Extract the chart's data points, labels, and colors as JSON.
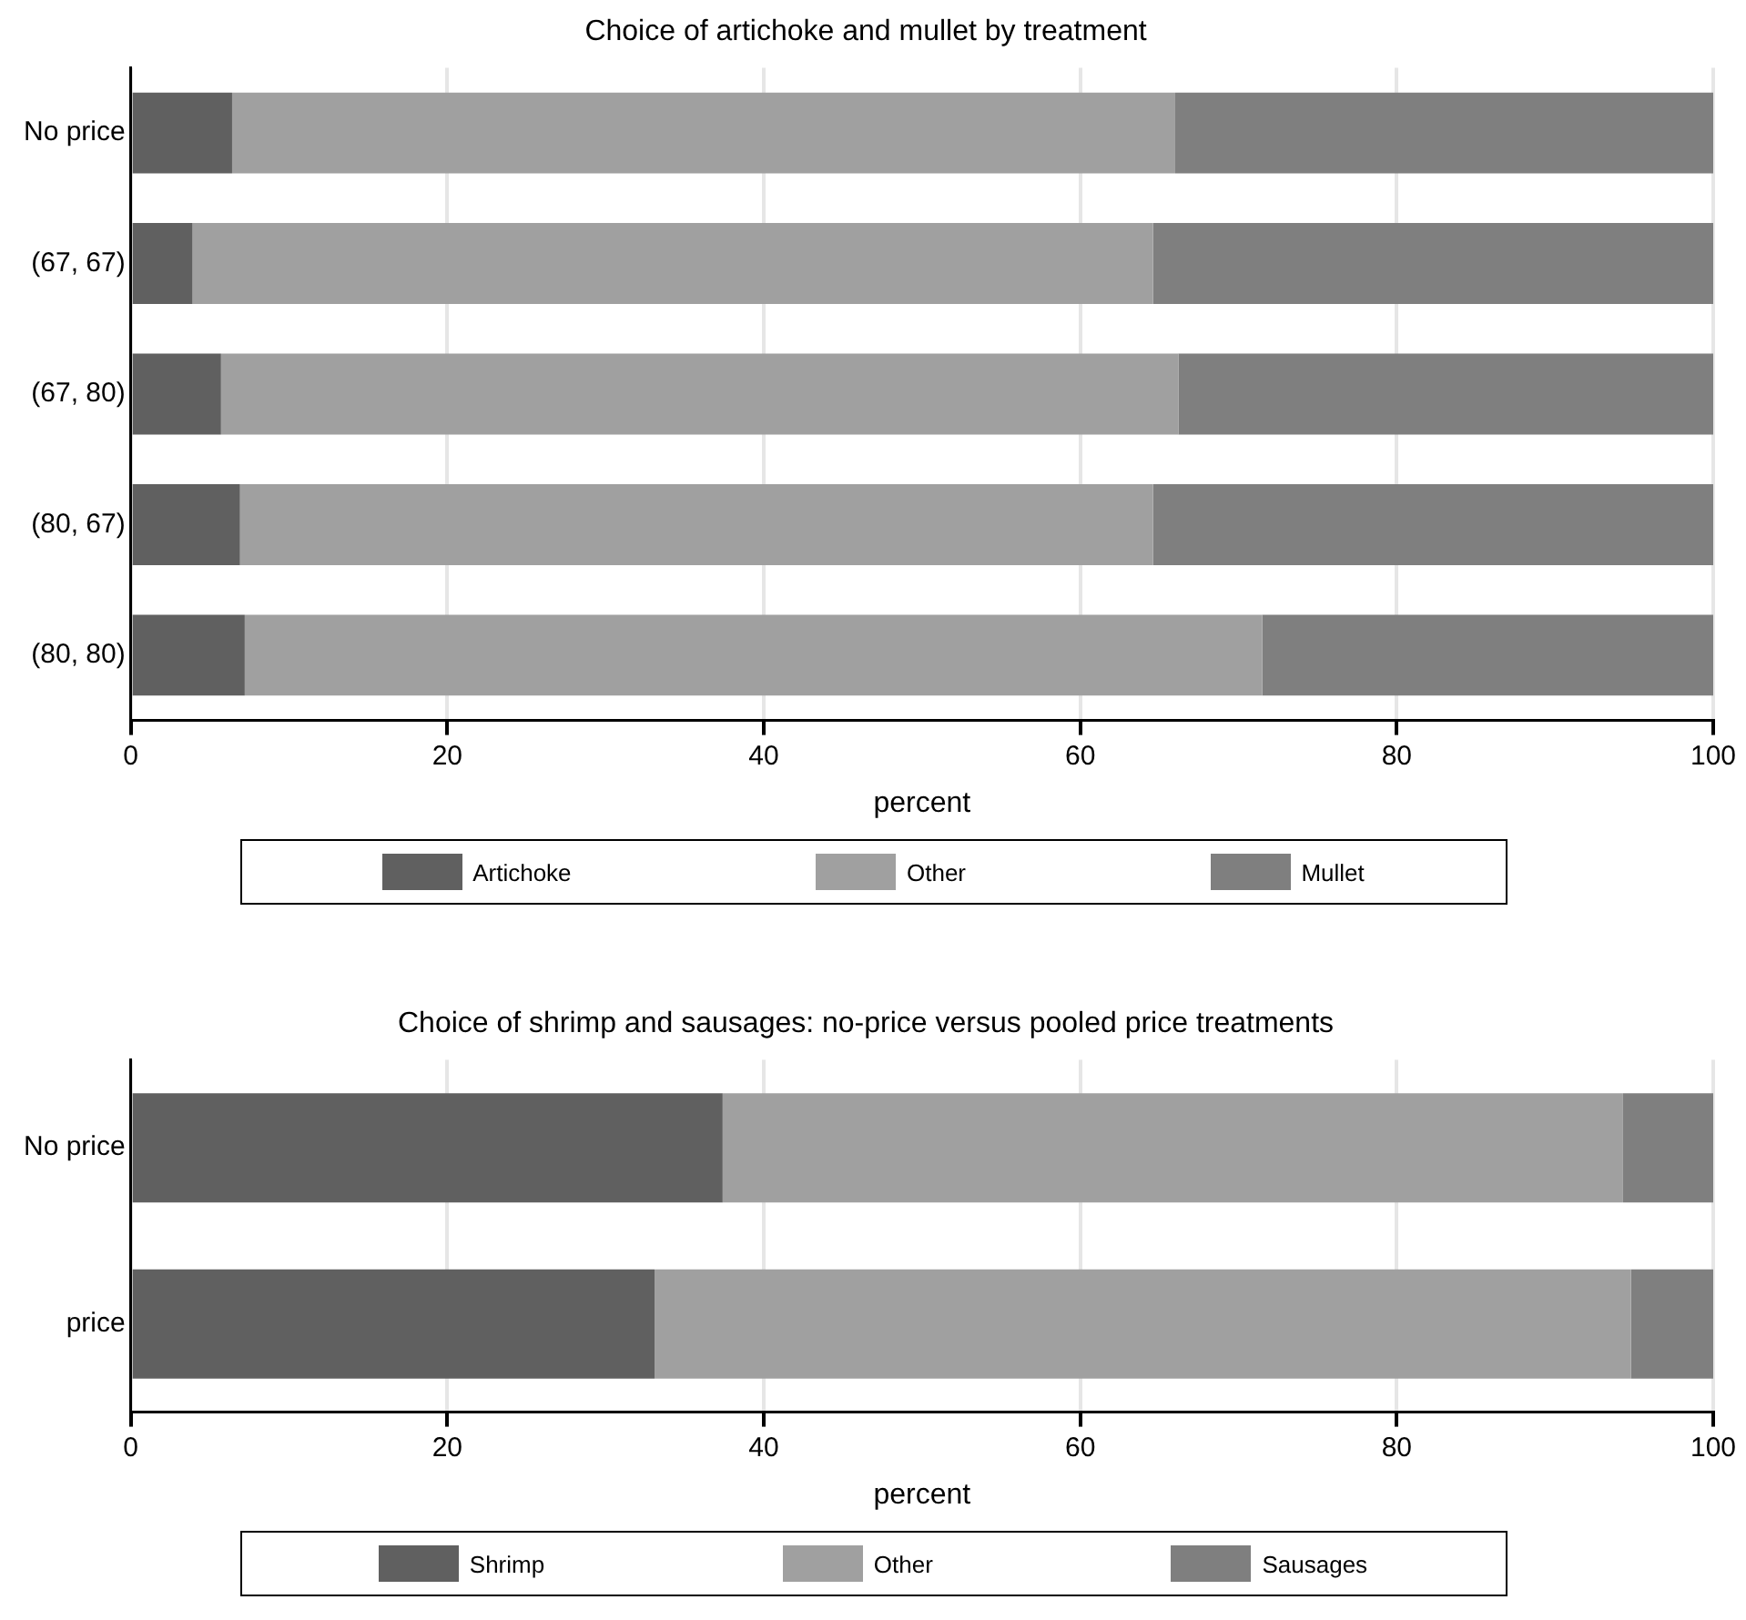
{
  "chart_data": [
    {
      "type": "bar",
      "orientation": "horizontal",
      "stacked": true,
      "title": "Choice of artichoke and mullet by treatment",
      "xlabel": "percent",
      "categories": [
        "No price",
        "(67, 67)",
        "(67, 80)",
        "(80, 67)",
        "(80, 80)"
      ],
      "series": [
        {
          "name": "Artichoke",
          "color": "#606060",
          "values": [
            6.4,
            3.9,
            5.7,
            6.9,
            7.2
          ]
        },
        {
          "name": "Other",
          "color": "#a0a0a0",
          "values": [
            59.6,
            60.7,
            60.5,
            57.7,
            64.3
          ]
        },
        {
          "name": "Mullet",
          "color": "#7f7f7f",
          "values": [
            34.0,
            35.4,
            33.8,
            35.4,
            28.5
          ]
        }
      ],
      "xlim": [
        0,
        100
      ],
      "xticks": [
        0,
        20,
        40,
        60,
        80,
        100
      ],
      "grid": "x",
      "legend": "bottom"
    },
    {
      "type": "bar",
      "orientation": "horizontal",
      "stacked": true,
      "title": "Choice of shrimp and sausages: no-price versus pooled price treatments",
      "xlabel": "percent",
      "categories": [
        "No price",
        "price"
      ],
      "series": [
        {
          "name": "Shrimp",
          "color": "#606060",
          "values": [
            37.4,
            33.1
          ]
        },
        {
          "name": "Other",
          "color": "#a0a0a0",
          "values": [
            56.9,
            61.7
          ]
        },
        {
          "name": "Sausages",
          "color": "#7f7f7f",
          "values": [
            5.7,
            5.2
          ]
        }
      ],
      "xlim": [
        0,
        100
      ],
      "xticks": [
        0,
        20,
        40,
        60,
        80,
        100
      ],
      "grid": "x",
      "legend": "bottom"
    }
  ]
}
